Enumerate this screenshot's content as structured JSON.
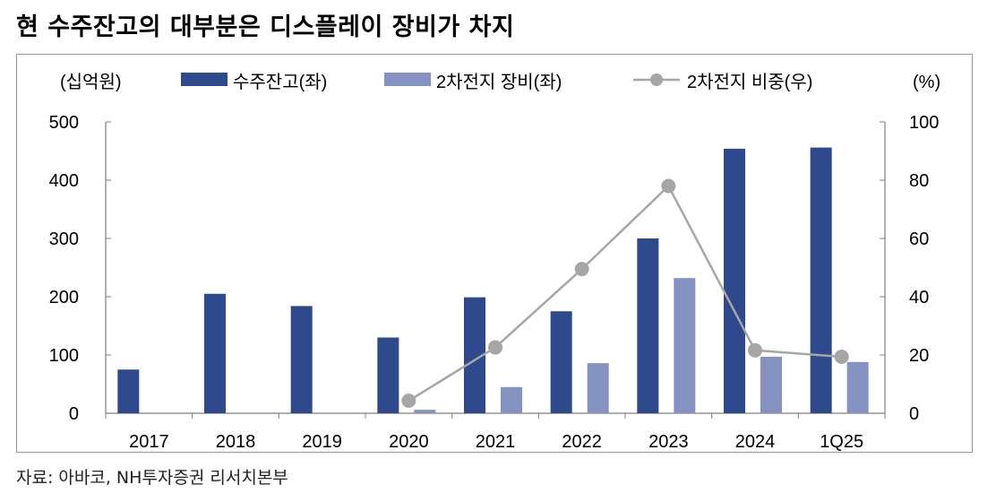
{
  "title": "현 수주잔고의 대부분은 디스플레이 장비가 차지",
  "source": "자료: 아바코, NH투자증권 리서치본부",
  "colors": {
    "backlog": "#2e4a8c",
    "battery": "#8593c3",
    "share_line": "#a6a6a6",
    "axis": "#7f7f7f"
  },
  "chart_data": {
    "type": "bar",
    "categories": [
      "2017",
      "2018",
      "2019",
      "2020",
      "2021",
      "2022",
      "2023",
      "2024",
      "1Q25"
    ],
    "series": [
      {
        "name": "수주잔고(좌)",
        "type": "bar",
        "axis": "left",
        "values": [
          75,
          205,
          184,
          130,
          199,
          175,
          300,
          454,
          456
        ]
      },
      {
        "name": "2차전지 장비(좌)",
        "type": "bar",
        "axis": "left",
        "values": [
          null,
          null,
          null,
          6,
          45,
          86,
          232,
          97,
          88
        ]
      },
      {
        "name": "2차전지 비중(우)",
        "type": "line",
        "axis": "right",
        "values": [
          null,
          null,
          null,
          4.3,
          22.6,
          49.5,
          78.0,
          21.6,
          19.4
        ]
      }
    ],
    "left_axis": {
      "label": "(십억원)",
      "ylim": [
        0,
        500
      ],
      "ticks": [
        "0",
        "100",
        "200",
        "300",
        "400",
        "500"
      ]
    },
    "right_axis": {
      "label": "(%)",
      "ylim": [
        0,
        100
      ],
      "ticks": [
        "0",
        "20",
        "40",
        "60",
        "80",
        "100"
      ]
    },
    "legend": "top",
    "grid": false
  }
}
